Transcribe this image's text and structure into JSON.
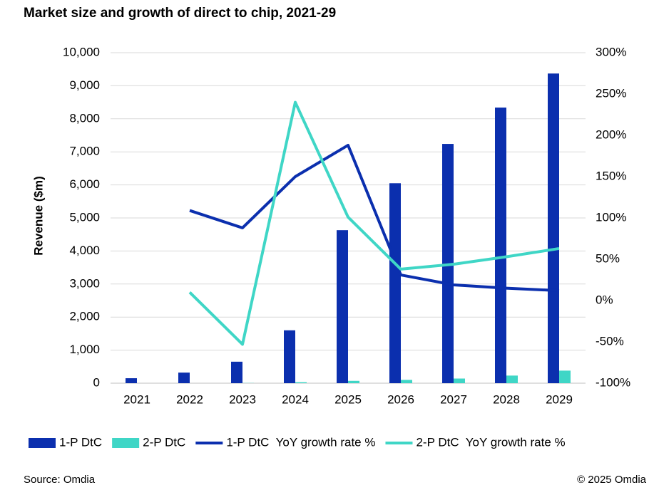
{
  "chart_data": {
    "type": "bar-line",
    "title": "Market size and growth of direct to chip, 2021-29",
    "y_label": "Revenue ($m)",
    "source": "Source: Omdia",
    "copyright": "© 2025 Omdia",
    "categories": [
      "2021",
      "2022",
      "2023",
      "2024",
      "2025",
      "2026",
      "2027",
      "2028",
      "2029"
    ],
    "series": [
      {
        "name": "1-P DtC",
        "type": "bar",
        "color": "#0b2fae",
        "values": [
          150,
          320,
          650,
          1600,
          4630,
          6050,
          7240,
          8340,
          9370
        ]
      },
      {
        "name": "2-P DtC",
        "type": "bar",
        "color": "#3fd6c6",
        "values": [
          0,
          0,
          5,
          30,
          70,
          100,
          140,
          230,
          380
        ]
      },
      {
        "name": "1-P DtC  YoY growth rate %",
        "type": "line",
        "axis": "y2",
        "color": "#0b2fae",
        "values": [
          null,
          109,
          88,
          150,
          188,
          31,
          19,
          15,
          12
        ]
      },
      {
        "name": "2-P DtC  YoY growth rate %",
        "type": "line",
        "axis": "y2",
        "color": "#3fd6c6",
        "values": [
          null,
          10,
          -53,
          240,
          101,
          38,
          44,
          53,
          63
        ]
      }
    ],
    "ylim": [
      0,
      10000
    ],
    "yticks": [
      {
        "value": 0,
        "label": "0"
      },
      {
        "value": 1000,
        "label": "1,000"
      },
      {
        "value": 2000,
        "label": "2,000"
      },
      {
        "value": 3000,
        "label": "3,000"
      },
      {
        "value": 4000,
        "label": "4,000"
      },
      {
        "value": 5000,
        "label": "5,000"
      },
      {
        "value": 6000,
        "label": "6,000"
      },
      {
        "value": 7000,
        "label": "7,000"
      },
      {
        "value": 8000,
        "label": "8,000"
      },
      {
        "value": 9000,
        "label": "9,000"
      },
      {
        "value": 10000,
        "label": "10,000"
      }
    ],
    "y2lim": [
      -100,
      300
    ],
    "y2ticks": [
      {
        "value": -100,
        "label": "-100%"
      },
      {
        "value": -50,
        "label": "-50%"
      },
      {
        "value": 0,
        "label": "0%"
      },
      {
        "value": 50,
        "label": "50%"
      },
      {
        "value": 100,
        "label": "100%"
      },
      {
        "value": 150,
        "label": "150%"
      },
      {
        "value": 200,
        "label": "200%"
      },
      {
        "value": 250,
        "label": "250%"
      },
      {
        "value": 300,
        "label": "300%"
      }
    ],
    "grid": true,
    "legend": "bottom"
  }
}
